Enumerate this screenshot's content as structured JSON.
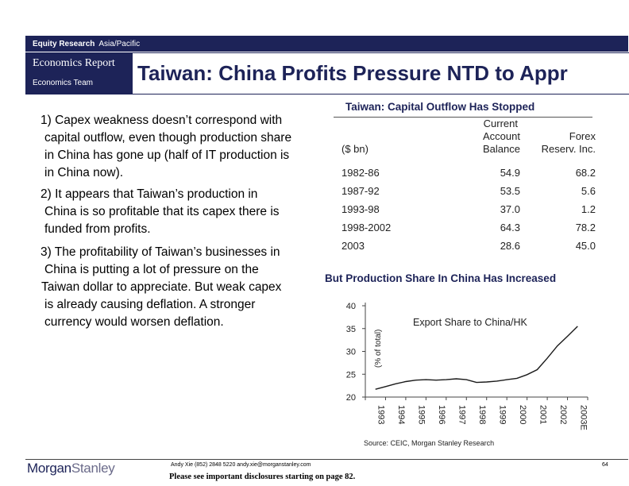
{
  "header": {
    "equity_bold": "Equity Research",
    "region": "Asia/Pacific",
    "report_type": "Economics Report",
    "team": "Economics Team",
    "title": "Taiwan: China Profits Pressure NTD to Appr"
  },
  "bullets": [
    [
      "1) Capex weakness doesn’t correspond with",
      "capital outflow, even though production share",
      "in China has gone up (half of IT production is",
      "in China now)."
    ],
    [
      "2) It appears that Taiwan’s production in",
      "China is so profitable that its capex there is",
      "funded from profits."
    ],
    [
      "3) The profitability of Taiwan’s businesses in",
      "China is putting a lot of pressure on the",
      "Taiwan dollar to appreciate.  But weak capex",
      "is already causing deflation.  A stronger",
      "currency would worsen deflation."
    ]
  ],
  "capital_table": {
    "title": "Taiwan: Capital Outflow Has Stopped",
    "header": {
      "unit": "($ bn)",
      "col1": [
        "Current",
        "Account",
        "Balance"
      ],
      "col2": [
        "Forex",
        "Reserv. Inc."
      ]
    },
    "rows": [
      {
        "period": "1982-86",
        "current_account": "54.9",
        "forex": "68.2"
      },
      {
        "period": "1987-92",
        "current_account": "53.5",
        "forex": "5.6"
      },
      {
        "period": "1993-98",
        "current_account": "37.0",
        "forex": "1.2"
      },
      {
        "period": "1998-2002",
        "current_account": "64.3",
        "forex": "78.2"
      },
      {
        "period": "2003",
        "current_account": "28.6",
        "forex": "45.0"
      }
    ]
  },
  "production_chart": {
    "heading": "But Production Share In China Has Increased",
    "source": "Source: CEIC, Morgan Stanley Research"
  },
  "chart_data": {
    "type": "line",
    "title": "Export Share to China/HK",
    "ylabel": "(% of total)",
    "xlabel": "",
    "ylim": [
      20,
      40
    ],
    "yticks": [
      20,
      25,
      30,
      35,
      40
    ],
    "categories": [
      "1993",
      "1994",
      "1995",
      "1996",
      "1997",
      "1998",
      "1999",
      "2000",
      "2001",
      "2002",
      "2003E"
    ],
    "x": [
      1993.0,
      1993.5,
      1994.0,
      1994.5,
      1995.0,
      1995.5,
      1996.0,
      1996.5,
      1997.0,
      1997.5,
      1998.0,
      1998.5,
      1999.0,
      1999.5,
      2000.0,
      2000.5,
      2001.0,
      2001.5,
      2002.0,
      2002.5,
      2003.0
    ],
    "values": [
      21.7,
      22.3,
      22.9,
      23.4,
      23.7,
      23.8,
      23.7,
      23.8,
      24.0,
      23.8,
      23.2,
      23.3,
      23.5,
      23.8,
      24.1,
      24.9,
      26.0,
      28.5,
      31.2,
      33.3,
      35.5
    ],
    "grid": false,
    "line_color": "#1a1a1a"
  },
  "footer": {
    "logo_part1": "Morgan",
    "logo_part2": "Stanley",
    "contact": "Andy Xie (852) 2848 5220  andy.xie@morganstanley.com",
    "disclosure": "Please see important disclosures starting on page 82.",
    "page": "64"
  }
}
